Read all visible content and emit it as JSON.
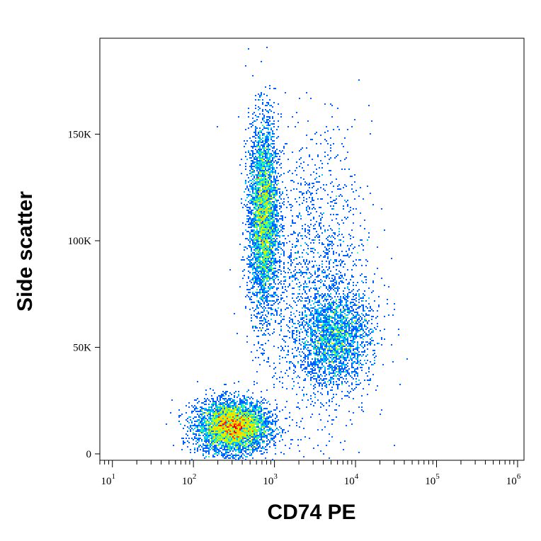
{
  "chart_data": {
    "type": "scatter",
    "subtype": "flow-cytometry-density-dot-plot",
    "xlabel": "CD74 PE",
    "ylabel": "Side scatter",
    "x_scale": "log",
    "xlim": [
      7,
      1200000
    ],
    "ylim": [
      -3000,
      195000
    ],
    "x_ticks": [
      {
        "base": "10",
        "exp": "1",
        "value": 10
      },
      {
        "base": "10",
        "exp": "2",
        "value": 100
      },
      {
        "base": "10",
        "exp": "3",
        "value": 1000
      },
      {
        "base": "10",
        "exp": "4",
        "value": 10000
      },
      {
        "base": "10",
        "exp": "5",
        "value": 100000
      },
      {
        "base": "10",
        "exp": "6",
        "value": 1000000
      }
    ],
    "y_ticks": [
      {
        "label": "0",
        "value": 0
      },
      {
        "label": "50K",
        "value": 50000
      },
      {
        "label": "100K",
        "value": 100000
      },
      {
        "label": "150K",
        "value": 150000
      }
    ],
    "grid": false,
    "color_scale": [
      "#0000e6",
      "#0060ff",
      "#00c8ff",
      "#40ff90",
      "#c8ff00",
      "#ffd000",
      "#ff4000",
      "#e60000"
    ],
    "populations": [
      {
        "x_center": 300,
        "x_spread": 0.22,
        "y_center": 13000,
        "y_spread": 6000,
        "density": "very high"
      },
      {
        "x_center": 720,
        "x_spread": 0.09,
        "y_center": 112000,
        "y_spread": 22000,
        "density": "high"
      },
      {
        "x_center": 5500,
        "x_spread": 0.22,
        "y_center": 55000,
        "y_spread": 11000,
        "density": "medium"
      },
      {
        "x_center": 3000,
        "x_spread": 0.35,
        "y_center": 80000,
        "y_spread": 35000,
        "density": "low"
      }
    ]
  }
}
